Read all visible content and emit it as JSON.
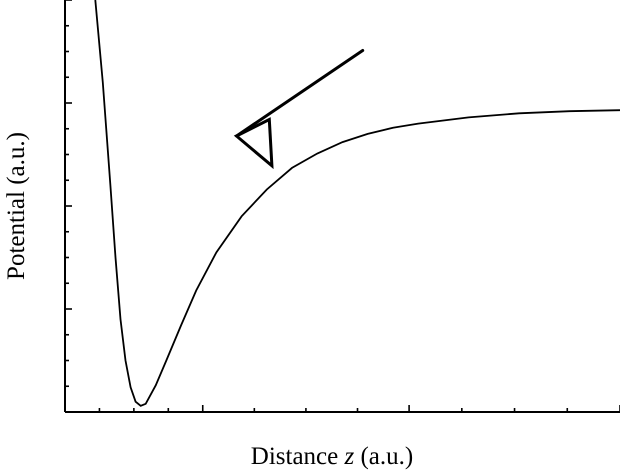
{
  "chart_data": {
    "type": "line",
    "title": "",
    "xlabel": {
      "prefix": "Distance ",
      "variable": "z",
      "suffix": " (a.u.)"
    },
    "ylabel": "Potential (a.u.)",
    "xlim": [
      0,
      11
    ],
    "ylim": [
      -20,
      20
    ],
    "x_major_ticks": [
      0,
      2.73,
      6.82,
      11
    ],
    "y_major_ticks": [
      -20,
      -10,
      0,
      10,
      20
    ],
    "grid": false,
    "legend": "none",
    "series": [
      {
        "x": [
          0.6,
          0.75,
          0.9,
          1.0,
          1.1,
          1.2,
          1.3,
          1.4,
          1.5,
          1.6,
          1.8,
          2.0,
          2.3,
          2.6,
          3.0,
          3.5,
          4.0,
          4.5,
          5.0,
          5.5,
          6.0,
          6.5,
          7.0,
          8.0,
          9.0,
          10.0,
          11.0
        ],
        "y": [
          20.0,
          12.0,
          2.0,
          -5.0,
          -11.0,
          -15.0,
          -17.6,
          -19.0,
          -19.4,
          -19.2,
          -17.4,
          -15.1,
          -11.6,
          -8.2,
          -4.5,
          -1.0,
          1.6,
          3.7,
          5.1,
          6.2,
          7.0,
          7.6,
          8.0,
          8.6,
          9.0,
          9.2,
          9.3
        ]
      }
    ],
    "annotations": [
      {
        "type": "triangle-arrow",
        "points": [
          {
            "x": 3.4,
            "y": 6.8
          },
          {
            "x": 4.05,
            "y": 8.4
          },
          {
            "x": 4.1,
            "y": 3.9
          }
        ],
        "line_to": {
          "x": 5.9,
          "y": 15.1
        }
      }
    ]
  }
}
